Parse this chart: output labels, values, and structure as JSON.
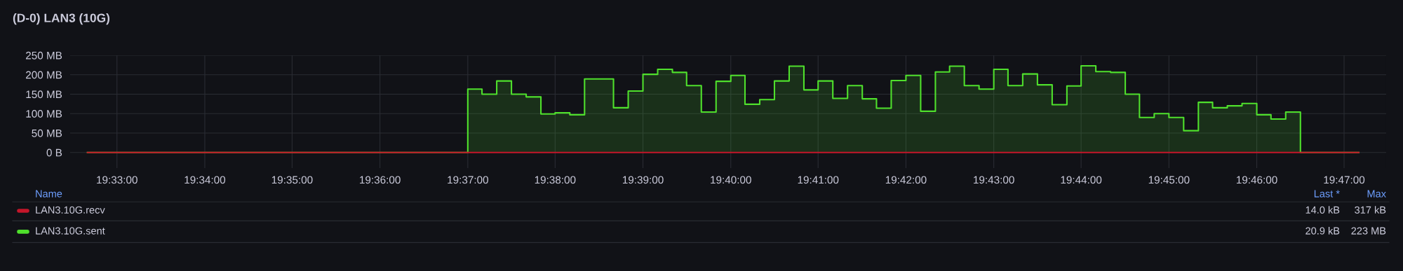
{
  "chart_data": {
    "type": "area",
    "title": "(D-0) LAN3 (10G)",
    "xlim": [
      19.5411,
      19.7913
    ],
    "ylim": [
      -40,
      250
    ],
    "xticks": [
      {
        "value": 19.55,
        "label": "19:33:00"
      },
      {
        "value": 19.5667,
        "label": "19:34:00"
      },
      {
        "value": 19.5833,
        "label": "19:35:00"
      },
      {
        "value": 19.6,
        "label": "19:36:00"
      },
      {
        "value": 19.6167,
        "label": "19:37:00"
      },
      {
        "value": 19.6333,
        "label": "19:38:00"
      },
      {
        "value": 19.65,
        "label": "19:39:00"
      },
      {
        "value": 19.6667,
        "label": "19:40:00"
      },
      {
        "value": 19.6833,
        "label": "19:41:00"
      },
      {
        "value": 19.7,
        "label": "19:42:00"
      },
      {
        "value": 19.7167,
        "label": "19:43:00"
      },
      {
        "value": 19.7333,
        "label": "19:44:00"
      },
      {
        "value": 19.75,
        "label": "19:45:00"
      },
      {
        "value": 19.7667,
        "label": "19:46:00"
      },
      {
        "value": 19.7833,
        "label": "19:47:00"
      }
    ],
    "yticks": [
      {
        "value": 0,
        "label": "0 B"
      },
      {
        "value": 50,
        "label": "50 MB"
      },
      {
        "value": 100,
        "label": "100 MB"
      },
      {
        "value": 150,
        "label": "150 MB"
      },
      {
        "value": 200,
        "label": "200 MB"
      },
      {
        "value": 250,
        "label": "250 MB"
      }
    ],
    "grid": true,
    "legend": "bottom",
    "x": [
      19.5444,
      19.6167,
      19.6194,
      19.6222,
      19.625,
      19.6278,
      19.6306,
      19.6333,
      19.6361,
      19.6389,
      19.6417,
      19.6444,
      19.6472,
      19.65,
      19.6528,
      19.6556,
      19.6583,
      19.6611,
      19.6639,
      19.6667,
      19.6694,
      19.6722,
      19.675,
      19.6778,
      19.6806,
      19.6833,
      19.6861,
      19.6889,
      19.6917,
      19.6944,
      19.6972,
      19.7,
      19.7028,
      19.7056,
      19.7083,
      19.7111,
      19.7139,
      19.7167,
      19.7194,
      19.7222,
      19.725,
      19.7278,
      19.7306,
      19.7333,
      19.7361,
      19.7389,
      19.7417,
      19.7444,
      19.7472,
      19.75,
      19.7528,
      19.7556,
      19.7583,
      19.7611,
      19.7639,
      19.7667,
      19.7694,
      19.7722,
      19.775,
      19.7861
    ],
    "series": [
      {
        "name": "LAN3.10G.recv",
        "type": "line",
        "color": "#c4162a",
        "values": [
          0,
          0,
          0,
          0,
          0,
          0,
          0,
          0,
          0,
          0,
          0,
          0,
          0,
          0,
          0,
          0,
          0,
          0,
          0,
          0,
          0,
          0,
          0,
          0,
          0,
          0,
          0,
          0,
          0,
          0,
          0,
          0,
          0,
          0,
          0,
          0,
          0,
          0,
          0,
          0,
          0,
          0,
          0,
          0,
          0,
          0,
          0,
          0,
          0,
          0,
          0,
          0,
          0,
          0,
          0,
          0,
          0,
          0,
          0,
          0
        ]
      },
      {
        "name": "LAN3.10G.sent",
        "color": "#4fe02c",
        "values": [
          0,
          163,
          150,
          184,
          150,
          143,
          99,
          102,
          97,
          189,
          189,
          115,
          158,
          201,
          214,
          206,
          172,
          104,
          183,
          198,
          124,
          136,
          184,
          222,
          161,
          184,
          139,
          172,
          138,
          114,
          185,
          198,
          106,
          207,
          222,
          172,
          163,
          214,
          172,
          202,
          174,
          123,
          171,
          223,
          208,
          206,
          150,
          90,
          100,
          90,
          56,
          129,
          115,
          120,
          126,
          97,
          86,
          104,
          0,
          0
        ]
      }
    ],
    "annotations": [
      "Name",
      "Last *",
      "Max",
      "14.0 kB",
      "317 kB",
      "20.9 kB",
      "223 MB"
    ]
  }
}
